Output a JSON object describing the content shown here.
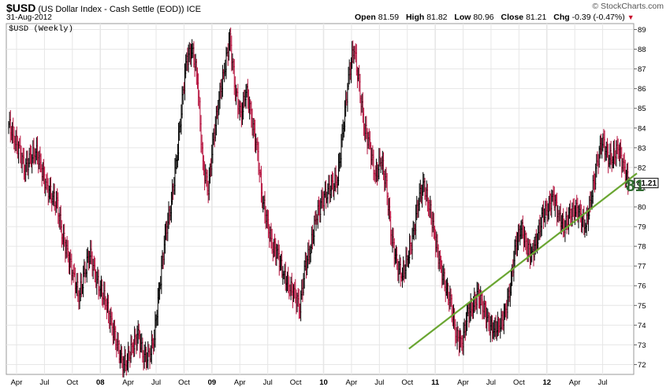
{
  "header": {
    "symbol": "$USD",
    "description": "(US Dollar Index - Cash Settle (EOD))",
    "exchange": "ICE",
    "date": "31-Aug-2012",
    "open_label": "Open",
    "open": "81.59",
    "high_label": "High",
    "high": "81.82",
    "low_label": "Low",
    "low": "80.96",
    "close_label": "Close",
    "close": "81.21",
    "chg_label": "Chg",
    "chg": "-0.39 (-0.47%)",
    "chg_arrow": "▼",
    "brand": "© StockCharts.com"
  },
  "colors": {
    "up": "#000000",
    "down": "#b5103c",
    "trendline": "#6aa632",
    "annotation": "#2f6b2f",
    "gridline": "#e6e6e6"
  },
  "chart_data": {
    "type": "line",
    "title": "$USD (Weekly)",
    "series": [
      {
        "name": "$USD (Weekly)",
        "values": [
          84.2,
          83.5,
          82.8,
          82.0,
          82.4,
          82.9,
          82.0,
          81.0,
          80.6,
          80.0,
          78.5,
          77.5,
          76.5,
          75.5,
          76.5,
          77.8,
          76.5,
          75.8,
          75.2,
          74.0,
          73.2,
          72.0,
          72.2,
          73.0,
          73.5,
          72.5,
          72.3,
          73.5,
          76.0,
          78.5,
          80.0,
          82.0,
          85.0,
          87.5,
          88.0,
          86.5,
          82.0,
          81.0,
          83.5,
          85.5,
          87.0,
          88.5,
          86.0,
          84.5,
          86.0,
          84.5,
          83.0,
          80.5,
          79.0,
          78.0,
          77.5,
          76.5,
          76.0,
          75.5,
          75.0,
          77.0,
          78.0,
          79.5,
          80.2,
          80.8,
          81.0,
          81.5,
          84.0,
          86.5,
          88.2,
          86.0,
          84.0,
          83.0,
          81.5,
          82.5,
          81.0,
          78.5,
          77.0,
          76.5,
          77.5,
          78.5,
          80.5,
          81.0,
          80.0,
          78.5,
          77.0,
          76.0,
          75.0,
          73.5,
          73.0,
          74.5,
          75.0,
          75.5,
          75.0,
          74.0,
          73.8,
          74.0,
          74.5,
          76.0,
          78.0,
          79.0,
          78.0,
          77.5,
          78.5,
          79.5,
          80.0,
          80.5,
          79.5,
          79.0,
          79.5,
          80.0,
          79.5,
          79.0,
          80.5,
          82.0,
          83.5,
          82.5,
          82.5,
          83.0,
          82.0,
          81.21
        ]
      }
    ],
    "x_tick_labels": [
      "Apr",
      "Jul",
      "Oct",
      "08",
      "Apr",
      "Jul",
      "Oct",
      "09",
      "Apr",
      "Jul",
      "Oct",
      "10",
      "Apr",
      "Jul",
      "Oct",
      "11",
      "Apr",
      "Jul",
      "Oct",
      "12",
      "Apr",
      "Jul"
    ],
    "y_tick_labels": [
      "72",
      "73",
      "74",
      "75",
      "76",
      "77",
      "78",
      "79",
      "80",
      "81",
      "82",
      "83",
      "84",
      "85",
      "86",
      "87",
      "88",
      "89"
    ],
    "ylim": [
      71.5,
      89.3
    ],
    "last_price_label": "81.21",
    "annotation_text": "81",
    "trendline": {
      "start": [
        0.645,
        72.8
      ],
      "end": [
        1.0,
        81.7
      ]
    }
  }
}
